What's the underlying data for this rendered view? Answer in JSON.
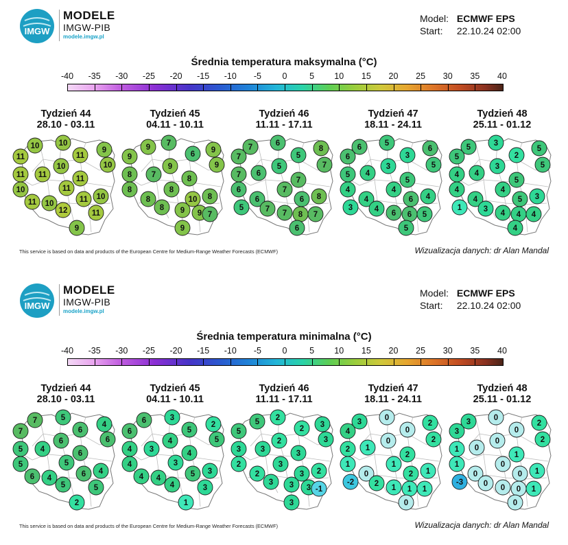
{
  "panels": [
    {
      "brand": {
        "line1": "MODELE",
        "line2": "IMGW-PIB",
        "line3": "modele.imgw.pl",
        "logo_text": "IMGW"
      },
      "model_label": "Model:",
      "model_value": "ECMWF EPS",
      "start_label": "Start:",
      "start_value": "22.10.24 02:00",
      "title": "Średnia temperatura maksymalna (°C)",
      "scale_labels": [
        "-40",
        "-35",
        "-30",
        "-25",
        "-20",
        "-15",
        "-10",
        "-5",
        "0",
        "5",
        "10",
        "15",
        "20",
        "25",
        "30",
        "35",
        "40"
      ],
      "footer": "This service is based on data and products of the European Centre for Medium-Range Weather Forecasts (ECMWF)",
      "credit": "Wizualizacja danych: dr Alan Mandal",
      "weeks": [
        {
          "title": "Tydzień 44",
          "dates": "28.10 - 03.11",
          "values": [
            10,
            11,
            10,
            9,
            11,
            10,
            11,
            11,
            10,
            11,
            10,
            11,
            10,
            11,
            10,
            11,
            12,
            11,
            9
          ]
        },
        {
          "title": "Tydzień 45",
          "dates": "04.11 - 10.11",
          "values": [
            9,
            9,
            7,
            6,
            9,
            8,
            7,
            9,
            9,
            8,
            8,
            8,
            8,
            10,
            8,
            8,
            9,
            9,
            9,
            7
          ]
        },
        {
          "title": "Tydzień 46",
          "dates": "11.11 - 17.11",
          "values": [
            7,
            7,
            6,
            5,
            8,
            7,
            6,
            5,
            7,
            7,
            6,
            7,
            6,
            6,
            8,
            7,
            7,
            8,
            7,
            6,
            5
          ]
        },
        {
          "title": "Tydzień 47",
          "dates": "18.11 - 24.11",
          "values": [
            6,
            6,
            5,
            3,
            6,
            5,
            4,
            3,
            5,
            5,
            4,
            4,
            4,
            6,
            4,
            4,
            6,
            6,
            5,
            5,
            3
          ]
        },
        {
          "title": "Tydzień 48",
          "dates": "25.11 - 01.12",
          "values": [
            5,
            5,
            3,
            2,
            5,
            4,
            4,
            3,
            5,
            5,
            4,
            4,
            4,
            5,
            3,
            3,
            4,
            4,
            4,
            4,
            1
          ]
        }
      ]
    },
    {
      "brand": {
        "line1": "MODELE",
        "line2": "IMGW-PIB",
        "line3": "modele.imgw.pl",
        "logo_text": "IMGW"
      },
      "model_label": "Model:",
      "model_value": "ECMWF EPS",
      "start_label": "Start:",
      "start_value": "22.10.24 02:00",
      "title": "Średnia temperatura minimalna (°C)",
      "scale_labels": [
        "-40",
        "-35",
        "-30",
        "-25",
        "-20",
        "-15",
        "-10",
        "-5",
        "0",
        "5",
        "10",
        "15",
        "20",
        "25",
        "30",
        "35",
        "40"
      ],
      "footer": "This service is based on data and products of the European Centre for Medium-Range Weather Forecasts (ECMWF)",
      "credit": "Wizualizacja danych: dr Alan Mandal",
      "weeks": [
        {
          "title": "Tydzień 44",
          "dates": "28.10 - 03.11",
          "values": [
            7,
            7,
            5,
            4,
            6,
            6,
            5,
            4,
            6,
            6,
            5,
            5,
            4,
            6,
            4,
            6,
            5,
            5,
            2
          ]
        },
        {
          "title": "Tydzień 45",
          "dates": "04.11 - 10.11",
          "values": [
            6,
            6,
            3,
            2,
            5,
            4,
            4,
            3,
            5,
            4,
            4,
            3,
            4,
            5,
            3,
            4,
            4,
            3,
            1
          ]
        },
        {
          "title": "Tydzień 46",
          "dates": "11.11 - 17.11",
          "values": [
            5,
            5,
            2,
            2,
            3,
            3,
            3,
            2,
            3,
            3,
            2,
            3,
            2,
            3,
            2,
            3,
            3,
            3,
            3,
            -1
          ]
        },
        {
          "title": "Tydzień 47",
          "dates": "18.11 - 24.11",
          "values": [
            3,
            4,
            0,
            0,
            2,
            2,
            1,
            0,
            2,
            2,
            1,
            1,
            0,
            2,
            1,
            2,
            1,
            1,
            1,
            0,
            -2
          ]
        },
        {
          "title": "Tydzień 48",
          "dates": "25.11 - 01.12",
          "values": [
            3,
            3,
            0,
            0,
            2,
            1,
            0,
            0,
            2,
            1,
            1,
            0,
            0,
            0,
            1,
            0,
            0,
            0,
            1,
            0,
            -3
          ]
        }
      ]
    }
  ]
}
